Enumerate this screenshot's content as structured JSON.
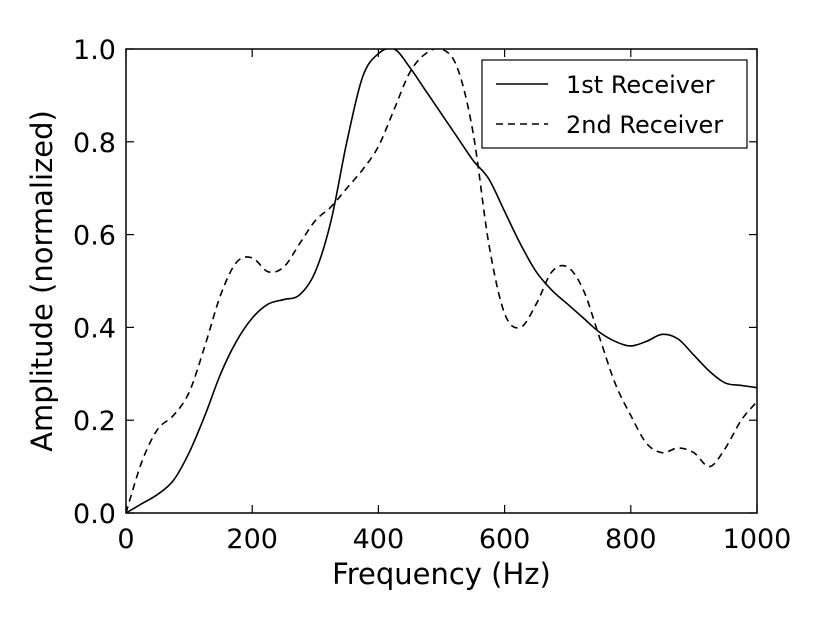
{
  "chart_data": {
    "type": "line",
    "xlabel": "Frequency (Hz)",
    "ylabel": "Amplitude (normalized)",
    "xlim": [
      0,
      1000
    ],
    "ylim": [
      0.0,
      1.0
    ],
    "xticks": [
      0,
      200,
      400,
      600,
      800,
      1000
    ],
    "xtick_labels": [
      "0",
      "200",
      "400",
      "600",
      "800",
      "1000"
    ],
    "yticks": [
      0.0,
      0.2,
      0.4,
      0.6,
      0.8,
      1.0
    ],
    "ytick_labels": [
      "0.0",
      "0.2",
      "0.4",
      "0.6",
      "0.8",
      "1.0"
    ],
    "grid": false,
    "legend_position": "top-right",
    "series": [
      {
        "name": "1st Receiver",
        "style": "solid",
        "color": "#000000",
        "x": [
          0,
          25,
          50,
          75,
          100,
          125,
          150,
          175,
          200,
          225,
          250,
          275,
          300,
          325,
          350,
          375,
          400,
          425,
          450,
          475,
          500,
          525,
          550,
          575,
          600,
          625,
          650,
          675,
          700,
          725,
          750,
          775,
          800,
          825,
          850,
          875,
          900,
          925,
          950,
          975,
          1000
        ],
        "y": [
          0.0,
          0.02,
          0.04,
          0.07,
          0.13,
          0.21,
          0.3,
          0.37,
          0.42,
          0.45,
          0.46,
          0.47,
          0.52,
          0.63,
          0.8,
          0.94,
          0.99,
          1.0,
          0.96,
          0.91,
          0.86,
          0.81,
          0.76,
          0.72,
          0.65,
          0.58,
          0.52,
          0.48,
          0.45,
          0.42,
          0.39,
          0.37,
          0.36,
          0.37,
          0.385,
          0.375,
          0.34,
          0.305,
          0.28,
          0.275,
          0.27
        ]
      },
      {
        "name": "2nd Receiver",
        "style": "dashed",
        "color": "#000000",
        "x": [
          0,
          25,
          50,
          75,
          100,
          125,
          150,
          175,
          200,
          225,
          250,
          275,
          300,
          325,
          350,
          375,
          400,
          425,
          450,
          475,
          500,
          525,
          550,
          575,
          600,
          625,
          650,
          675,
          700,
          725,
          750,
          775,
          800,
          825,
          850,
          875,
          900,
          925,
          950,
          975,
          1000
        ],
        "y": [
          0.0,
          0.11,
          0.18,
          0.21,
          0.26,
          0.36,
          0.47,
          0.54,
          0.55,
          0.52,
          0.53,
          0.58,
          0.63,
          0.66,
          0.7,
          0.74,
          0.79,
          0.87,
          0.95,
          0.99,
          1.0,
          0.96,
          0.82,
          0.58,
          0.43,
          0.4,
          0.45,
          0.52,
          0.53,
          0.48,
          0.38,
          0.28,
          0.21,
          0.15,
          0.13,
          0.14,
          0.13,
          0.1,
          0.14,
          0.2,
          0.24
        ]
      }
    ]
  }
}
